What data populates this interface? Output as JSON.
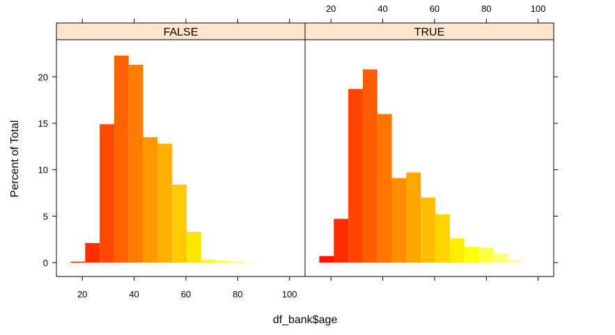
{
  "chart_data": {
    "type": "bar",
    "xlabel": "df_bank$age",
    "ylabel": "Percent of Total",
    "xlim": [
      10,
      106
    ],
    "ylim": [
      -1.5,
      24
    ],
    "x_ticks": [
      20,
      40,
      60,
      80,
      100
    ],
    "y_ticks": [
      0,
      5,
      10,
      15,
      20
    ],
    "bin_width": 5.6,
    "strip_color": "#ffe5cc",
    "panels": [
      {
        "strip": "FALSE",
        "bins": [
          {
            "x0": 15.5,
            "x1": 21.1,
            "value": 0.1
          },
          {
            "x0": 21.1,
            "x1": 26.7,
            "value": 2.1
          },
          {
            "x0": 26.7,
            "x1": 32.3,
            "value": 14.9
          },
          {
            "x0": 32.3,
            "x1": 37.9,
            "value": 22.3
          },
          {
            "x0": 37.9,
            "x1": 43.5,
            "value": 21.3
          },
          {
            "x0": 43.5,
            "x1": 49.1,
            "value": 13.5
          },
          {
            "x0": 49.1,
            "x1": 54.7,
            "value": 12.8
          },
          {
            "x0": 54.7,
            "x1": 60.3,
            "value": 8.4
          },
          {
            "x0": 60.3,
            "x1": 65.9,
            "value": 3.3
          },
          {
            "x0": 65.9,
            "x1": 71.5,
            "value": 0.3
          },
          {
            "x0": 71.5,
            "x1": 77.1,
            "value": 0.2
          },
          {
            "x0": 77.1,
            "x1": 82.7,
            "value": 0.1
          },
          {
            "x0": 82.7,
            "x1": 88.3,
            "value": 0.05
          }
        ]
      },
      {
        "strip": "TRUE",
        "bins": [
          {
            "x0": 15.5,
            "x1": 21.1,
            "value": 0.7
          },
          {
            "x0": 21.1,
            "x1": 26.7,
            "value": 4.7
          },
          {
            "x0": 26.7,
            "x1": 32.3,
            "value": 18.7
          },
          {
            "x0": 32.3,
            "x1": 37.9,
            "value": 20.8
          },
          {
            "x0": 37.9,
            "x1": 43.5,
            "value": 16.0
          },
          {
            "x0": 43.5,
            "x1": 49.1,
            "value": 9.1
          },
          {
            "x0": 49.1,
            "x1": 54.7,
            "value": 9.7
          },
          {
            "x0": 54.7,
            "x1": 60.3,
            "value": 7.0
          },
          {
            "x0": 60.3,
            "x1": 65.9,
            "value": 5.2
          },
          {
            "x0": 65.9,
            "x1": 71.5,
            "value": 2.6
          },
          {
            "x0": 71.5,
            "x1": 77.1,
            "value": 1.7
          },
          {
            "x0": 77.1,
            "x1": 82.7,
            "value": 1.6
          },
          {
            "x0": 82.7,
            "x1": 88.3,
            "value": 1.0
          },
          {
            "x0": 88.3,
            "x1": 93.9,
            "value": 0.3
          }
        ]
      }
    ]
  }
}
